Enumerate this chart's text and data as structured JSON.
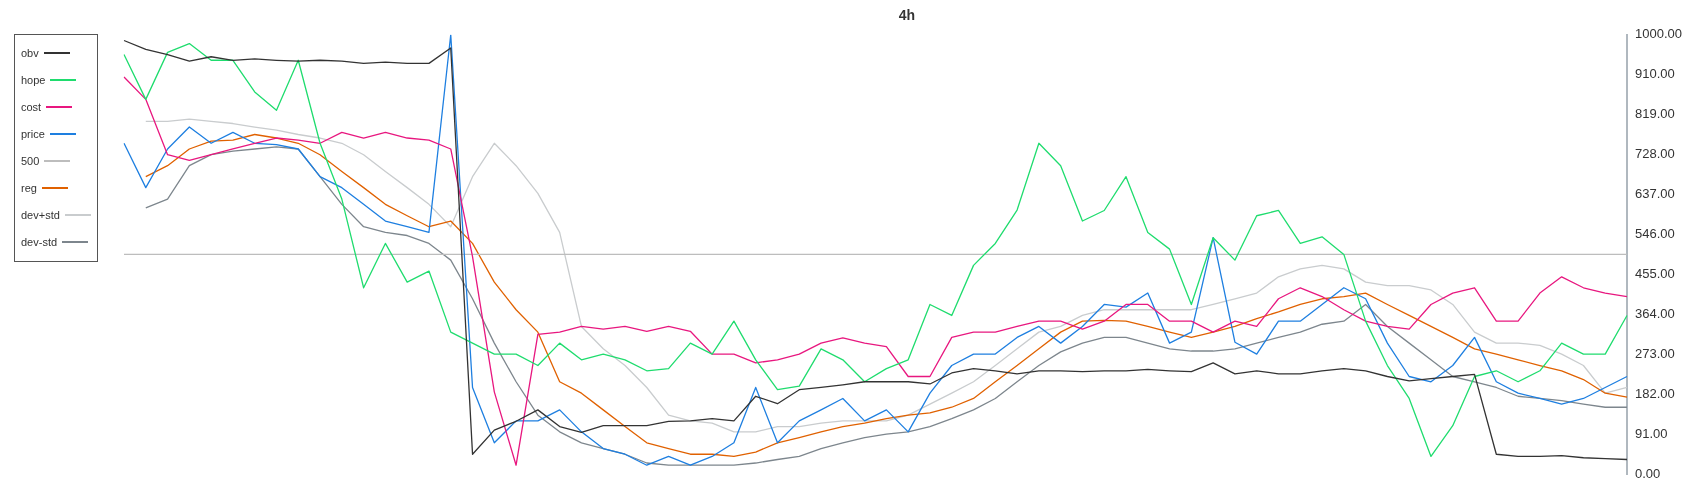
{
  "chart_data": {
    "type": "line",
    "title": "4h",
    "categories": [
      null,
      null,
      null,
      null,
      null,
      null,
      null,
      null,
      null,
      null,
      null,
      null,
      null,
      null,
      null,
      null,
      null,
      null,
      null,
      null,
      null,
      null,
      null,
      null,
      null,
      null,
      null,
      null,
      null,
      null,
      null,
      null,
      null,
      null,
      null,
      null,
      null,
      null,
      null,
      null,
      null,
      null,
      null,
      null,
      null,
      null,
      null,
      null,
      null,
      null,
      null,
      null,
      null,
      null,
      null,
      null,
      null,
      null,
      null,
      null,
      null,
      null,
      null,
      null,
      null,
      null,
      null,
      null,
      null,
      null
    ],
    "ylim": [
      0,
      1000
    ],
    "yticks": [
      {
        "value": 0,
        "label": "0.00"
      },
      {
        "value": 91,
        "label": "91.00"
      },
      {
        "value": 182,
        "label": "182.00"
      },
      {
        "value": 273,
        "label": "273.00"
      },
      {
        "value": 364,
        "label": "364.00"
      },
      {
        "value": 455,
        "label": "455.00"
      },
      {
        "value": 546,
        "label": "546.00"
      },
      {
        "value": 637,
        "label": "637.00"
      },
      {
        "value": 728,
        "label": "728.00"
      },
      {
        "value": 819,
        "label": "819.00"
      },
      {
        "value": 910,
        "label": "910.00"
      },
      {
        "value": 1000,
        "label": "1000.00"
      }
    ],
    "tick_labels": "y",
    "legend": "top left",
    "marker": "none",
    "line_style": "solid",
    "series": [
      {
        "name": "obv",
        "color": "#333333",
        "values": [
          987,
          967,
          955,
          940,
          950,
          942,
          945,
          942,
          940,
          942,
          940,
          935,
          938,
          935,
          935,
          970,
          45,
          100,
          120,
          146,
          108,
          95,
          110,
          110,
          110,
          120,
          121,
          126,
          121,
          177,
          160,
          192,
          197,
          203,
          210,
          210,
          210,
          205,
          230,
          240,
          235,
          228,
          235,
          235,
          233,
          235,
          235,
          238,
          235,
          233,
          253,
          228,
          235,
          228,
          228,
          235,
          240,
          235,
          222,
          212,
          217,
          222,
          227,
          45,
          40,
          40,
          42,
          37,
          35,
          33
        ]
      },
      {
        "name": "hope",
        "color": "#1fdc6e",
        "values": [
          955,
          853,
          960,
          980,
          942,
          942,
          870,
          828,
          942,
          753,
          626,
          424,
          525,
          437,
          462,
          323,
          298,
          273,
          273,
          247,
          298,
          260,
          273,
          260,
          235,
          240,
          298,
          273,
          348,
          260,
          192,
          200,
          285,
          260,
          210,
          240,
          260,
          386,
          361,
          475,
          525,
          601,
          753,
          702,
          576,
          600,
          677,
          550,
          512,
          386,
          538,
          487,
          588,
          600,
          525,
          540,
          500,
          348,
          247,
          172,
          40,
          110,
          222,
          235,
          210,
          235,
          298,
          273,
          273,
          361
        ]
      },
      {
        "name": "cost",
        "color": "#e8177f",
        "values": [
          904,
          853,
          727,
          714,
          727,
          740,
          753,
          765,
          760,
          753,
          778,
          765,
          778,
          765,
          760,
          740,
          495,
          187,
          20,
          318,
          323,
          336,
          330,
          336,
          325,
          336,
          325,
          273,
          273,
          253,
          260,
          273,
          298,
          310,
          298,
          290,
          222,
          222,
          311,
          323,
          323,
          336,
          348,
          348,
          330,
          348,
          386,
          386,
          348,
          348,
          323,
          348,
          336,
          399,
          424,
          404,
          374,
          348,
          336,
          330,
          386,
          412,
          424,
          348,
          348,
          412,
          449,
          424,
          412,
          404
        ]
      },
      {
        "name": "price",
        "color": "#1e7fe0",
        "values": [
          753,
          652,
          740,
          790,
          753,
          778,
          753,
          750,
          740,
          677,
          652,
          614,
          576,
          563,
          550,
          1000,
          197,
          71,
          121,
          121,
          146,
          96,
          58,
          45,
          20,
          40,
          20,
          40,
          71,
          197,
          71,
          121,
          146,
          172,
          121,
          146,
          96,
          184,
          247,
          273,
          273,
          311,
          336,
          298,
          336,
          386,
          380,
          412,
          298,
          323,
          538,
          300,
          273,
          348,
          348,
          386,
          424,
          399,
          298,
          222,
          210,
          247,
          311,
          210,
          184,
          172,
          159,
          172,
          197,
          222
        ]
      },
      {
        "name": "500",
        "color": "#bdbdbd",
        "values": [
          500,
          500,
          500,
          500,
          500,
          500,
          500,
          500,
          500,
          500,
          500,
          500,
          500,
          500,
          500,
          500,
          500,
          500,
          500,
          500,
          500,
          500,
          500,
          500,
          500,
          500,
          500,
          500,
          500,
          500,
          500,
          500,
          500,
          500,
          500,
          500,
          500,
          500,
          500,
          500,
          500,
          500,
          500,
          500,
          500,
          500,
          500,
          500,
          500,
          500,
          500,
          500,
          500,
          500,
          500,
          500,
          500,
          500,
          500,
          500,
          500,
          500,
          500,
          500,
          500,
          500,
          500,
          500,
          500,
          500
        ]
      },
      {
        "name": "reg",
        "color": "#e06100",
        "values": [
          null,
          677,
          702,
          740,
          758,
          760,
          773,
          765,
          753,
          727,
          689,
          652,
          614,
          588,
          563,
          576,
          525,
          437,
          374,
          323,
          210,
          184,
          146,
          108,
          71,
          58,
          45,
          45,
          40,
          50,
          71,
          83,
          96,
          108,
          116,
          126,
          134,
          139,
          152,
          172,
          210,
          247,
          285,
          323,
          348,
          350,
          348,
          336,
          323,
          311,
          323,
          336,
          354,
          369,
          386,
          399,
          404,
          412,
          386,
          361,
          336,
          311,
          285,
          273,
          260,
          247,
          235,
          215,
          184,
          175
        ]
      },
      {
        "name": "dev+std",
        "color": "#c9ccce",
        "values": [
          null,
          803,
          803,
          808,
          803,
          798,
          790,
          783,
          773,
          765,
          753,
          727,
          689,
          652,
          614,
          563,
          677,
          753,
          702,
          639,
          550,
          336,
          285,
          247,
          197,
          134,
          121,
          116,
          96,
          96,
          108,
          108,
          116,
          121,
          121,
          121,
          134,
          159,
          184,
          210,
          247,
          285,
          323,
          336,
          361,
          374,
          374,
          374,
          374,
          374,
          386,
          399,
          412,
          449,
          467,
          475,
          467,
          437,
          429,
          429,
          419,
          386,
          323,
          298,
          298,
          293,
          273,
          247,
          184,
          197
        ]
      },
      {
        "name": "dev-std",
        "color": "#7d868d",
        "values": [
          null,
          606,
          626,
          702,
          727,
          735,
          740,
          745,
          740,
          677,
          614,
          563,
          550,
          543,
          525,
          487,
          399,
          298,
          210,
          134,
          96,
          71,
          58,
          45,
          25,
          20,
          20,
          20,
          20,
          25,
          33,
          40,
          58,
          71,
          83,
          91,
          96,
          108,
          126,
          146,
          172,
          210,
          247,
          278,
          298,
          311,
          311,
          298,
          285,
          280,
          280,
          285,
          298,
          311,
          323,
          341,
          348,
          386,
          336,
          298,
          260,
          222,
          210,
          197,
          177,
          172,
          167,
          159,
          152,
          152
        ]
      }
    ]
  }
}
